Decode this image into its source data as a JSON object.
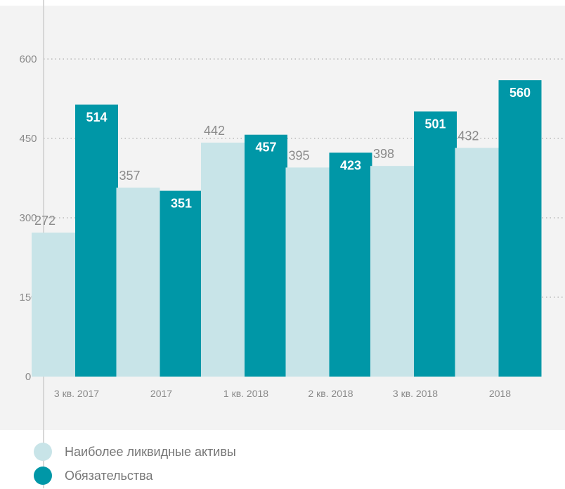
{
  "chart_data": {
    "type": "bar",
    "categories": [
      "3 кв. 2017",
      "2017",
      "1 кв. 2018",
      "2 кв. 2018",
      "3 кв. 2018",
      "2018"
    ],
    "highlight_category": "2018",
    "series": [
      {
        "name": "Наиболее ликвидные активы",
        "color": "#c8e4e8",
        "values": [
          272,
          357,
          442,
          395,
          398,
          432
        ],
        "labels": [
          "272",
          "357",
          "442",
          "395",
          "398",
          "432"
        ]
      },
      {
        "name": "Обязательства",
        "color": "#0097a7",
        "values": [
          514,
          351,
          457,
          423,
          501,
          560
        ],
        "labels": [
          "514",
          "351",
          "457",
          "423",
          "501",
          "560"
        ]
      }
    ],
    "yticks": [
      0,
      150,
      300,
      450,
      600
    ],
    "ylim": [
      0,
      690
    ],
    "grid": true,
    "legend_position": "bottom-left",
    "colors": {
      "plot_bg": "#f3f3f3",
      "grid": "#b9b9b9",
      "axis": "#cccccc",
      "highlight_text": "#0097a7"
    }
  }
}
